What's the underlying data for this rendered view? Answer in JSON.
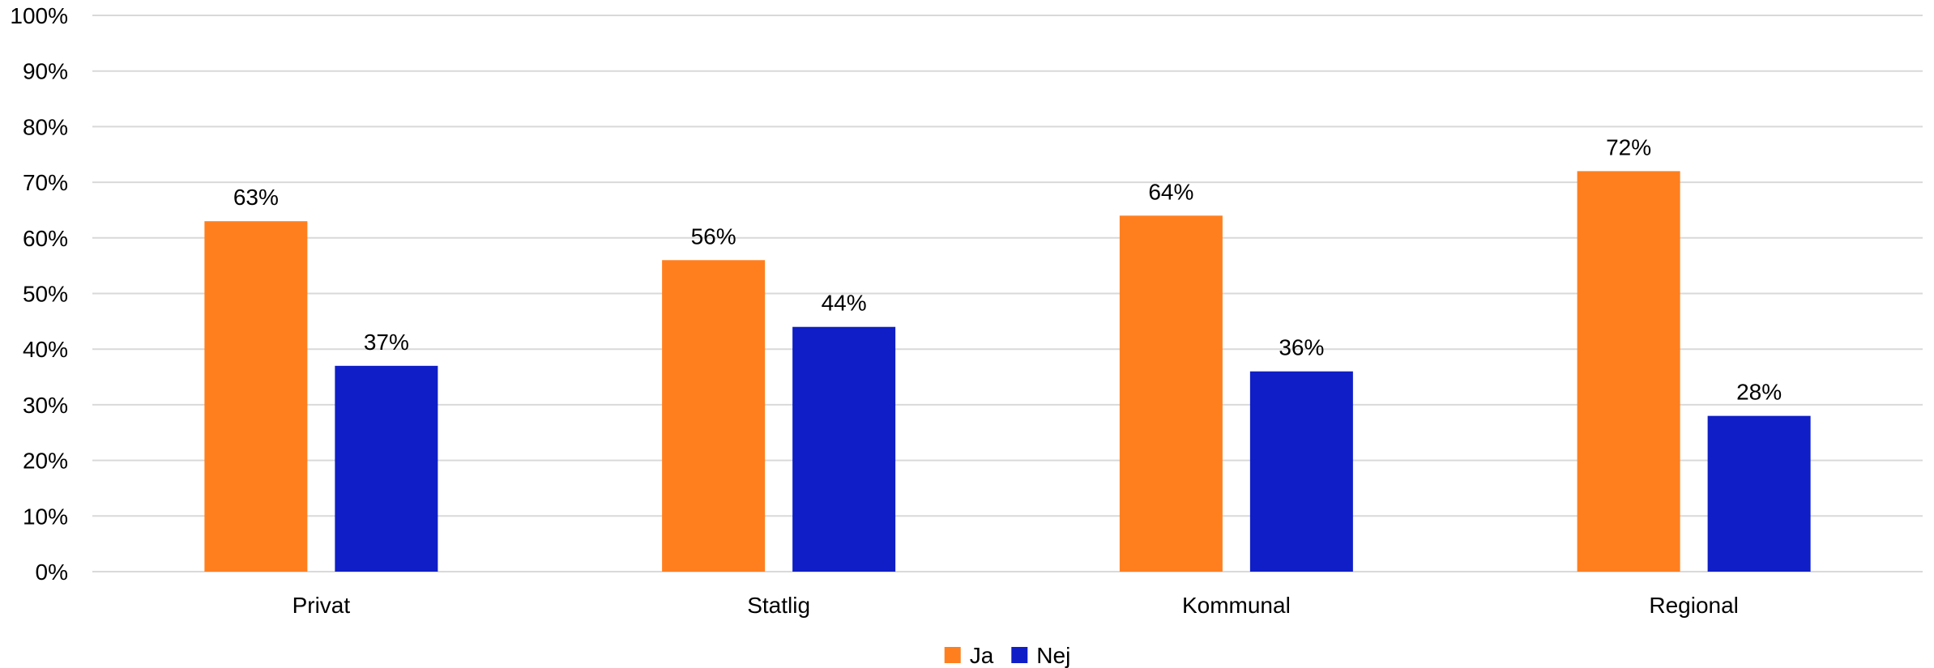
{
  "chart_data": {
    "type": "bar",
    "title": "",
    "xlabel": "",
    "ylabel": "",
    "categories": [
      "Privat",
      "Statlig",
      "Kommunal",
      "Regional"
    ],
    "series": [
      {
        "name": "Ja",
        "color": "#FF7F1F",
        "values": [
          63,
          56,
          64,
          72
        ],
        "labels": [
          "63%",
          "56%",
          "64%",
          "72%"
        ]
      },
      {
        "name": "Nej",
        "color": "#0F1EC6",
        "values": [
          37,
          44,
          36,
          28
        ],
        "labels": [
          "37%",
          "44%",
          "36%",
          "28%"
        ]
      }
    ],
    "ylim": [
      0,
      100
    ],
    "yticks": [
      0,
      10,
      20,
      30,
      40,
      50,
      60,
      70,
      80,
      90,
      100
    ],
    "ytick_labels": [
      "0%",
      "10%",
      "20%",
      "30%",
      "40%",
      "50%",
      "60%",
      "70%",
      "80%",
      "90%",
      "100%"
    ],
    "grid": true,
    "legend_position": "bottom-center"
  }
}
